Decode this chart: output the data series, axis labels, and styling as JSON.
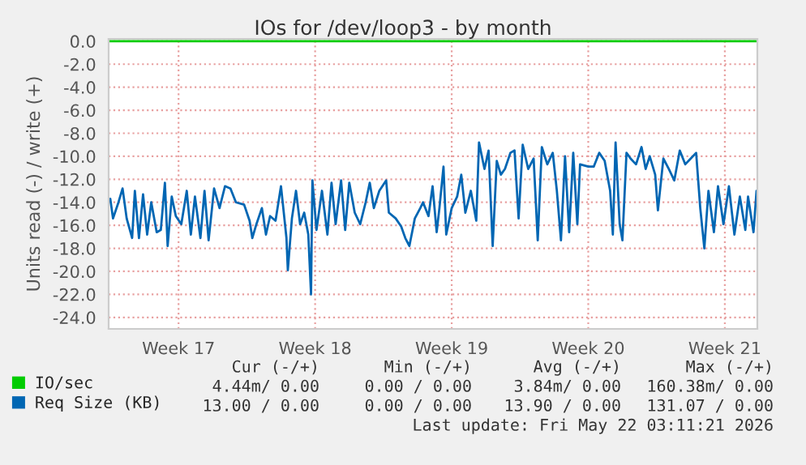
{
  "chart_data": {
    "type": "line",
    "title": "IOs for /dev/loop3 - by month",
    "ylabel": "Units read (-) / write (+)",
    "xlim": [
      "2026-04-18T22:00",
      "2026-05-22T04:00"
    ],
    "ylim": [
      -25,
      0.2
    ],
    "xticks": [
      {
        "value": "2026-04-22T12:00",
        "label": "Week 17"
      },
      {
        "value": "2026-04-29T12:00",
        "label": "Week 18"
      },
      {
        "value": "2026-05-06T12:00",
        "label": "Week 19"
      },
      {
        "value": "2026-05-13T12:00",
        "label": "Week 20"
      },
      {
        "value": "2026-05-20T12:00",
        "label": "Week 21"
      }
    ],
    "yticks": [
      {
        "value": 0,
        "label": "0.0"
      },
      {
        "value": -2,
        "label": "-2.0"
      },
      {
        "value": -4,
        "label": "-4.0"
      },
      {
        "value": -6,
        "label": "-6.0"
      },
      {
        "value": -8,
        "label": "-8.0"
      },
      {
        "value": -10,
        "label": "-10.0"
      },
      {
        "value": -12,
        "label": "-12.0"
      },
      {
        "value": -14,
        "label": "-14.0"
      },
      {
        "value": -16,
        "label": "-16.0"
      },
      {
        "value": -18,
        "label": "-18.0"
      },
      {
        "value": -20,
        "label": "-20.0"
      },
      {
        "value": -22,
        "label": "-22.0"
      },
      {
        "value": -24,
        "label": "-24.0"
      }
    ],
    "grid": true,
    "legend": "bottom left",
    "marker": "none",
    "line_style": "solid",
    "series": [
      {
        "name": "IO/sec",
        "color": "#00cc00",
        "x": [
          "2026-04-18T22:00",
          "2026-05-22T04:00"
        ],
        "values": [
          0,
          0
        ]
      },
      {
        "name": "Req Size (KB)",
        "color": "#0066b3",
        "x": [
          "2026-04-19T00:00",
          "2026-04-19T03:22",
          "2026-04-19T10:05",
          "2026-04-19T15:07",
          "2026-04-19T20:10",
          "2026-04-20T02:53",
          "2026-04-20T06:14",
          "2026-04-20T11:17",
          "2026-04-20T16:19",
          "2026-04-20T21:22",
          "2026-04-21T02:24",
          "2026-04-21T09:07",
          "2026-04-21T14:10",
          "2026-04-21T19:12",
          "2026-04-21T22:34",
          "2026-04-22T03:36",
          "2026-04-22T08:38",
          "2026-04-22T15:22",
          "2026-04-22T22:05",
          "2026-04-23T03:07",
          "2026-04-23T08:10",
          "2026-04-23T14:53",
          "2026-04-23T19:55",
          "2026-04-24T00:58",
          "2026-04-24T07:41",
          "2026-04-24T14:24",
          "2026-04-24T21:07",
          "2026-04-25T03:50",
          "2026-04-25T10:34",
          "2026-04-25T20:38",
          "2026-04-26T03:22",
          "2026-04-26T06:43",
          "2026-04-26T11:46",
          "2026-04-26T18:29",
          "2026-04-26T23:31",
          "2026-04-27T04:34",
          "2026-04-27T11:17",
          "2026-04-27T18:00",
          "2026-04-28T00:43",
          "2026-04-28T02:24",
          "2026-04-28T07:26",
          "2026-04-28T12:29",
          "2026-04-28T17:31",
          "2026-04-28T22:34",
          "2026-04-29T03:36",
          "2026-04-29T06:58",
          "2026-04-29T08:38",
          "2026-04-29T13:41",
          "2026-04-29T20:24",
          "2026-04-30T03:07",
          "2026-04-30T08:10",
          "2026-04-30T13:12",
          "2026-04-30T19:55",
          "2026-05-01T00:58",
          "2026-05-01T06:00",
          "2026-05-01T12:43",
          "2026-05-01T19:26",
          "2026-05-02T02:10",
          "2026-05-02T07:12",
          "2026-05-02T12:14",
          "2026-05-02T18:58",
          "2026-05-03T03:22",
          "2026-05-03T06:43",
          "2026-05-03T15:07",
          "2026-05-03T21:50",
          "2026-05-04T02:53",
          "2026-05-04T07:55",
          "2026-05-04T14:38",
          "2026-05-04T21:22",
          "2026-05-05T00:43",
          "2026-05-05T07:26",
          "2026-05-05T12:29",
          "2026-05-05T17:31",
          "2026-05-05T20:53",
          "2026-05-06T01:55",
          "2026-05-06T05:17",
          "2026-05-06T12:00",
          "2026-05-06T18:43",
          "2026-05-06T23:46",
          "2026-05-07T04:48",
          "2026-05-07T11:31",
          "2026-05-07T18:14",
          "2026-05-07T21:36",
          "2026-05-08T04:19",
          "2026-05-08T09:22",
          "2026-05-08T14:24",
          "2026-05-08T19:26",
          "2026-05-09T00:29",
          "2026-05-09T05:31",
          "2026-05-09T12:14",
          "2026-05-09T17:17",
          "2026-05-09T22:19",
          "2026-05-10T03:22",
          "2026-05-10T10:05",
          "2026-05-10T16:48",
          "2026-05-10T21:50",
          "2026-05-11T02:53",
          "2026-05-11T09:36",
          "2026-05-11T16:19",
          "2026-05-11T21:22",
          "2026-05-12T02:24",
          "2026-05-12T07:26",
          "2026-05-12T12:29",
          "2026-05-12T17:31",
          "2026-05-12T22:34",
          "2026-05-13T01:55",
          "2026-05-13T12:00",
          "2026-05-13T18:43",
          "2026-05-14T01:26",
          "2026-05-14T08:10",
          "2026-05-14T14:53",
          "2026-05-14T18:14",
          "2026-05-14T21:36",
          "2026-05-15T02:38",
          "2026-05-15T06:00",
          "2026-05-15T11:02",
          "2026-05-15T16:05",
          "2026-05-15T22:48",
          "2026-05-16T05:31",
          "2026-05-16T10:34",
          "2026-05-16T15:36",
          "2026-05-16T22:19",
          "2026-05-17T01:41",
          "2026-05-17T08:24",
          "2026-05-17T15:07",
          "2026-05-17T21:50",
          "2026-05-18T04:34",
          "2026-05-18T11:17",
          "2026-05-18T18:00",
          "2026-05-19T00:43",
          "2026-05-19T05:46",
          "2026-05-19T10:48",
          "2026-05-19T15:50",
          "2026-05-19T22:34",
          "2026-05-20T03:36",
          "2026-05-20T10:19",
          "2026-05-20T17:02",
          "2026-05-20T23:46",
          "2026-05-21T06:29",
          "2026-05-21T13:12",
          "2026-05-21T16:34",
          "2026-05-21T23:17",
          "2026-05-22T03:00"
        ],
        "values": [
          -13.7,
          -15.4,
          -14.0,
          -12.8,
          -15.4,
          -17.1,
          -13.0,
          -17.1,
          -13.3,
          -16.8,
          -14.0,
          -16.6,
          -16.4,
          -12.3,
          -17.8,
          -13.5,
          -15.2,
          -15.9,
          -13.0,
          -16.8,
          -13.5,
          -17.1,
          -13.0,
          -17.3,
          -12.8,
          -14.5,
          -12.6,
          -12.8,
          -14.0,
          -14.2,
          -15.6,
          -17.1,
          -15.9,
          -14.5,
          -16.8,
          -15.2,
          -15.6,
          -12.6,
          -17.1,
          -19.9,
          -15.4,
          -13.0,
          -15.9,
          -14.9,
          -16.8,
          -22.0,
          -12.1,
          -16.4,
          -13.0,
          -16.8,
          -12.3,
          -15.9,
          -12.1,
          -16.4,
          -12.3,
          -14.9,
          -15.9,
          -14.0,
          -12.3,
          -14.5,
          -13.0,
          -12.1,
          -14.9,
          -15.4,
          -16.1,
          -17.1,
          -17.8,
          -15.4,
          -14.5,
          -14.0,
          -15.2,
          -12.6,
          -16.6,
          -14.5,
          -10.9,
          -16.8,
          -14.5,
          -13.5,
          -11.6,
          -14.9,
          -13.0,
          -15.6,
          -8.8,
          -11.1,
          -9.5,
          -17.8,
          -10.4,
          -11.6,
          -11.1,
          -9.7,
          -9.5,
          -15.4,
          -9.0,
          -11.1,
          -10.2,
          -17.3,
          -9.2,
          -10.7,
          -9.7,
          -13.0,
          -17.3,
          -10.0,
          -16.6,
          -9.7,
          -15.9,
          -10.7,
          -10.9,
          -10.9,
          -9.7,
          -10.4,
          -13.0,
          -16.8,
          -8.8,
          -15.9,
          -17.3,
          -9.7,
          -10.2,
          -10.7,
          -9.2,
          -11.1,
          -10.0,
          -11.6,
          -14.7,
          -10.2,
          -11.1,
          -12.1,
          -9.5,
          -10.7,
          -10.2,
          -9.7,
          -14.5,
          -18.0,
          -13.0,
          -16.6,
          -12.6,
          -15.9,
          -12.6,
          -16.8,
          -13.5,
          -16.4,
          -13.5,
          -16.6,
          -13.0
        ]
      }
    ],
    "annotations": [
      "Cur (-/+)",
      "Min (-/+)",
      "Avg (-/+)",
      "Max (-/+)",
      "4.44m/ 0.00",
      "0.00 / 0.00",
      "3.84m/ 0.00",
      "160.38m/ 0.00",
      "13.00 / 0.00",
      "0.00 / 0.00",
      "13.90 / 0.00",
      "131.07 / 0.00",
      "Last update: Fri May 22 03:11:21 2026"
    ]
  }
}
